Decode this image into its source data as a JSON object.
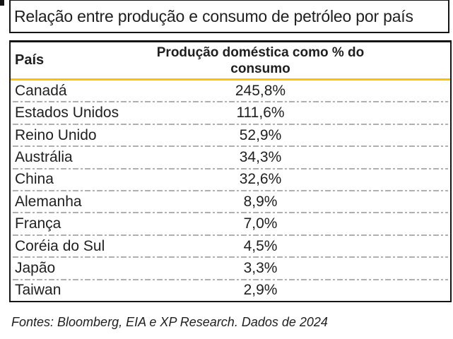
{
  "title": "Relação entre produção e consumo de petróleo por país",
  "table": {
    "col_country": "País",
    "col_value": "Produção doméstica como % do consumo",
    "rows": [
      {
        "country": "Canadá",
        "value": "245,8%"
      },
      {
        "country": "Estados Unidos",
        "value": "111,6%"
      },
      {
        "country": "Reino Unido",
        "value": "52,9%"
      },
      {
        "country": "Austrália",
        "value": "34,3%"
      },
      {
        "country": "China",
        "value": "32,6%"
      },
      {
        "country": "Alemanha",
        "value": "8,9%"
      },
      {
        "country": "França",
        "value": "7,0%"
      },
      {
        "country": "Coréia do Sul",
        "value": "4,5%"
      },
      {
        "country": "Japão",
        "value": "3,3%"
      },
      {
        "country": "Taiwan",
        "value": "2,9%"
      }
    ]
  },
  "footer": "Fontes: Bloomberg, EIA e XP Research. Dados de 2024",
  "colors": {
    "accent_yellow": "#FFC000",
    "separator_gray": "#B0B0B0",
    "text": "#1F1F1F",
    "border": "#151515"
  },
  "chart_data": {
    "type": "table",
    "title": "Relação entre produção e consumo de petróleo por país",
    "columns": [
      "País",
      "Produção doméstica como % do consumo"
    ],
    "categories": [
      "Canadá",
      "Estados Unidos",
      "Reino Unido",
      "Austrália",
      "China",
      "Alemanha",
      "França",
      "Coréia do Sul",
      "Japão",
      "Taiwan"
    ],
    "values": [
      245.8,
      111.6,
      52.9,
      34.3,
      32.6,
      8.9,
      7.0,
      4.5,
      3.3,
      2.9
    ],
    "value_format": "percent with comma decimal separator",
    "source": "Fontes: Bloomberg, EIA e XP Research. Dados de 2024"
  }
}
